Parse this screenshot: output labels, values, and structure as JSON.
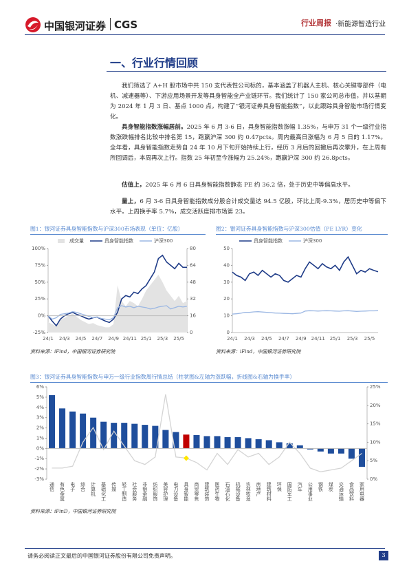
{
  "header": {
    "logo_cn": "中国银河证券",
    "logo_en": "CGS",
    "report_type": "行业周报",
    "industry": "·新能源智造行业"
  },
  "section_title": "一、行业行情回顾",
  "paragraphs": [
    {
      "text": "我们筛选了 A+H 股市场中共 150 支代表性公司标的，基本涵盖了机器人主机、核心关键零部件（电机、减速器等）、下游应用场景开发等具身智能全产业链环节。我们统计了 150 家公司总市值，并以基期为 2024 年 1 月 3 日、基点 1000 点，构建了“银河证券具身智能指数”，以此跟踪具身智能市场行情变化。"
    },
    {
      "lead": "具身智能指数涨幅居前。",
      "text": "2025 年 6 月 3-6 日，具身智能指数涨幅 1.35%，与申万 31 个一级行业指数涨跌幅排名比较中排名第 15，跑赢沪深 300 约 0.47pcts。周内最高日涨幅为 6 月 5 日的 1.17%。全年看，具身智能指数走势自 24 年 10 月下旬开始持续上行，经历 3 月后的回撤后再次攀升，在上周有所回调后，本周再次上行。指数 25 年初至今涨幅为 25.24%，跑赢沪深 300 约 26.8pcts。"
    },
    {
      "lead": "估值上，",
      "text": "2025 年 6 月 6 日具身智能指数静态 PE 约 36.2 倍，处于历史中等偏高水平。"
    },
    {
      "lead": "量上，",
      "text": "6 月 3-6 日具身智能指数成分股合计成交量达 94.5 亿股，环比上周-9.3%，居历史中等偏下水平。上周换手率 5.7%，成交活跃度排市场第 23。"
    }
  ],
  "chart_data": [
    {
      "type": "line",
      "title": "图1：银河证券具身智能指数与沪深300市场表现（单位：亿股）",
      "source": "资料来源：iFind，中国银河证券研究院",
      "categories": [
        "24/1",
        null,
        null,
        null,
        "24/3",
        null,
        null,
        null,
        "24/5",
        null,
        null,
        null,
        "24/7",
        null,
        null,
        null,
        "24/9",
        null,
        null,
        null,
        "24/11",
        null,
        null,
        null,
        "25/1",
        null,
        null,
        null,
        "25/3",
        null,
        null,
        null,
        "25/5",
        null,
        null
      ],
      "ylim": [
        -25,
        100
      ],
      "yticks": [
        {
          "value": -25,
          "label": "-25%"
        },
        {
          "value": 0,
          "label": "0%"
        },
        {
          "value": 25,
          "label": "25%"
        },
        {
          "value": 50,
          "label": "50%"
        },
        {
          "value": 75,
          "label": "75%"
        },
        {
          "value": 100,
          "label": "100%"
        }
      ],
      "y2lim": [
        0,
        80
      ],
      "y2ticks": [
        0,
        16,
        32,
        48,
        64,
        80
      ],
      "series": [
        {
          "name": "成交量",
          "style": "area",
          "axis": "y2",
          "color": "#e3e3e3",
          "values": [
            10,
            8,
            6,
            12,
            14,
            16,
            18,
            15,
            12,
            10,
            8,
            9,
            7,
            6,
            5,
            5,
            8,
            45,
            30,
            25,
            30,
            28,
            25,
            32,
            40,
            45,
            50,
            55,
            48,
            40,
            35,
            30,
            35,
            28,
            30
          ]
        },
        {
          "name": "具身智能指数",
          "style": "line",
          "color": "#1f3c88",
          "values": [
            0,
            -8,
            -15,
            -5,
            0,
            3,
            5,
            2,
            0,
            -3,
            -5,
            -3,
            -2,
            -5,
            -8,
            -10,
            -5,
            5,
            25,
            30,
            28,
            35,
            33,
            40,
            45,
            55,
            65,
            85,
            90,
            80,
            75,
            70,
            78,
            72,
            72
          ]
        },
        {
          "name": "沪深300",
          "style": "line",
          "color": "#9bb7e3",
          "values": [
            0,
            -5,
            -3,
            2,
            3,
            4,
            6,
            5,
            3,
            1,
            -1,
            -3,
            -2,
            -4,
            -5,
            -6,
            -3,
            12,
            15,
            13,
            14,
            12,
            14,
            13,
            12,
            10,
            11,
            13,
            14,
            15,
            10,
            12,
            14,
            13,
            14
          ]
        }
      ]
    },
    {
      "type": "line",
      "title": "图2：银河证券具身智能指数与沪深300估值（PE LYR）变化",
      "source": "资料来源：iFind，中国银河证券研究院",
      "categories": [
        "24/1",
        null,
        null,
        null,
        "24/3",
        null,
        null,
        null,
        "24/5",
        null,
        null,
        null,
        "24/7",
        null,
        null,
        null,
        "24/9",
        null,
        null,
        null,
        "24/11",
        null,
        null,
        null,
        "25/1",
        null,
        null,
        null,
        "25/3",
        null,
        null,
        null,
        "25/5",
        null,
        null
      ],
      "ylim": [
        0,
        50
      ],
      "yticks": [
        0,
        10,
        20,
        30,
        40,
        50
      ],
      "series": [
        {
          "name": "具身智能指数",
          "style": "line",
          "color": "#1f3c88",
          "values": [
            36,
            34,
            33,
            31,
            35,
            36,
            34,
            37,
            35,
            33,
            35,
            34,
            31,
            30,
            32,
            34,
            33,
            38,
            42,
            40,
            38,
            41,
            39,
            38,
            40,
            37,
            42,
            45,
            40,
            35,
            37,
            36,
            38,
            37,
            36.2
          ]
        },
        {
          "name": "沪深300",
          "style": "line",
          "color": "#9bb7e3",
          "values": [
            11,
            11.2,
            11.5,
            12,
            12,
            12.3,
            12.4,
            12.2,
            12,
            11.8,
            11.6,
            11.5,
            11.4,
            11.3,
            11.2,
            11.4,
            11.6,
            12.8,
            13,
            12.9,
            12.8,
            12.9,
            13,
            12.9,
            12.8,
            12.7,
            12.9,
            13,
            12.8,
            12.6,
            12.7,
            12.8,
            12.9,
            12.9,
            13
          ]
        }
      ]
    },
    {
      "type": "bar_line",
      "title": "图3：银河证券具身智能指数与申万一级行业指数周行情总结（柱状图&左轴为涨跌幅，折线图&右轴为换手率）",
      "source": "资料来源：iFinD，中国银河证券研究院",
      "categories": [
        "通信",
        "有色金属",
        "电子",
        "综合",
        "计算机",
        "基础化工",
        "传媒",
        "轻工制造",
        "社会服务",
        "非银金融",
        "纺织服饰",
        "美容护理",
        "电力设备",
        "具身智能",
        "商贸零售",
        "建筑装饰",
        "医药生物",
        "石油石化",
        "机械设备",
        "农林牧渔",
        "房地产",
        "建筑材料",
        "环保",
        "国防军工",
        "汽车",
        "公用事业",
        "钢铁",
        "煤炭",
        "交通运输",
        "食品饮料",
        "家用电器"
      ],
      "ylim": [
        -3,
        6
      ],
      "yticks": [
        {
          "value": -3,
          "label": "-3%"
        },
        {
          "value": -2,
          "label": "-2%"
        },
        {
          "value": -1,
          "label": "-1%"
        },
        {
          "value": 0,
          "label": "0%"
        },
        {
          "value": 1,
          "label": "1%"
        },
        {
          "value": 2,
          "label": "2%"
        },
        {
          "value": 3,
          "label": "3%"
        },
        {
          "value": 4,
          "label": "4%"
        },
        {
          "value": 5,
          "label": "5%"
        },
        {
          "value": 6,
          "label": "6%"
        }
      ],
      "y2lim": [
        0,
        25
      ],
      "y2ticks": [
        {
          "value": 0,
          "label": "0%"
        },
        {
          "value": 5,
          "label": "5%"
        },
        {
          "value": 10,
          "label": "10%"
        },
        {
          "value": 15,
          "label": "15%"
        },
        {
          "value": 20,
          "label": "20%"
        },
        {
          "value": 25,
          "label": "25%"
        }
      ],
      "series": [
        {
          "style": "bar",
          "colors": [
            "#1f4e9c",
            "#1f4e9c",
            "#1f4e9c",
            "#1f4e9c",
            "#1f4e9c",
            "#1f4e9c",
            "#1f4e9c",
            "#1f4e9c",
            "#1f4e9c",
            "#1f4e9c",
            "#1f4e9c",
            "#1f4e9c",
            "#1f4e9c",
            "#c00000",
            "#1f4e9c",
            "#1f4e9c",
            "#1f4e9c",
            "#1f4e9c",
            "#1f4e9c",
            "#1f4e9c",
            "#1f4e9c",
            "#1f4e9c",
            "#1f4e9c",
            "#1f4e9c",
            "#1f4e9c",
            "#1f4e9c",
            "#1f4e9c",
            "#1f4e9c",
            "#1f4e9c",
            "#1f4e9c",
            "#1f4e9c"
          ],
          "values": [
            5.2,
            3.9,
            3.6,
            3.4,
            3.0,
            2.6,
            2.5,
            2.5,
            2.4,
            2.3,
            2.2,
            1.8,
            1.6,
            1.35,
            1.3,
            1.2,
            1.2,
            1.1,
            1.1,
            1.0,
            0.9,
            0.8,
            0.6,
            0.5,
            0.3,
            -0.1,
            -0.3,
            -0.5,
            -0.5,
            -1.0,
            -1.8
          ]
        },
        {
          "style": "line",
          "axis": "y2",
          "color": "#d4d4d4",
          "point_colors": [
            null,
            null,
            null,
            null,
            null,
            null,
            null,
            null,
            null,
            null,
            null,
            null,
            null,
            "#ffe600",
            null,
            null,
            null,
            null,
            null,
            null,
            null,
            null,
            null,
            null,
            null,
            null,
            null,
            null,
            null,
            null,
            null
          ],
          "values": [
            3,
            3,
            3.5,
            10,
            14,
            8,
            13,
            9,
            5,
            4,
            6,
            23,
            6,
            5.7,
            4.5,
            2.5,
            7,
            4,
            8,
            6,
            7,
            4,
            6,
            10,
            7,
            3,
            2,
            2.5,
            3,
            5,
            7
          ]
        }
      ]
    }
  ],
  "footer": {
    "disclaimer": "请务必阅读正文最后的中国银河证券股份有限公司免责声明。",
    "page": "3"
  }
}
